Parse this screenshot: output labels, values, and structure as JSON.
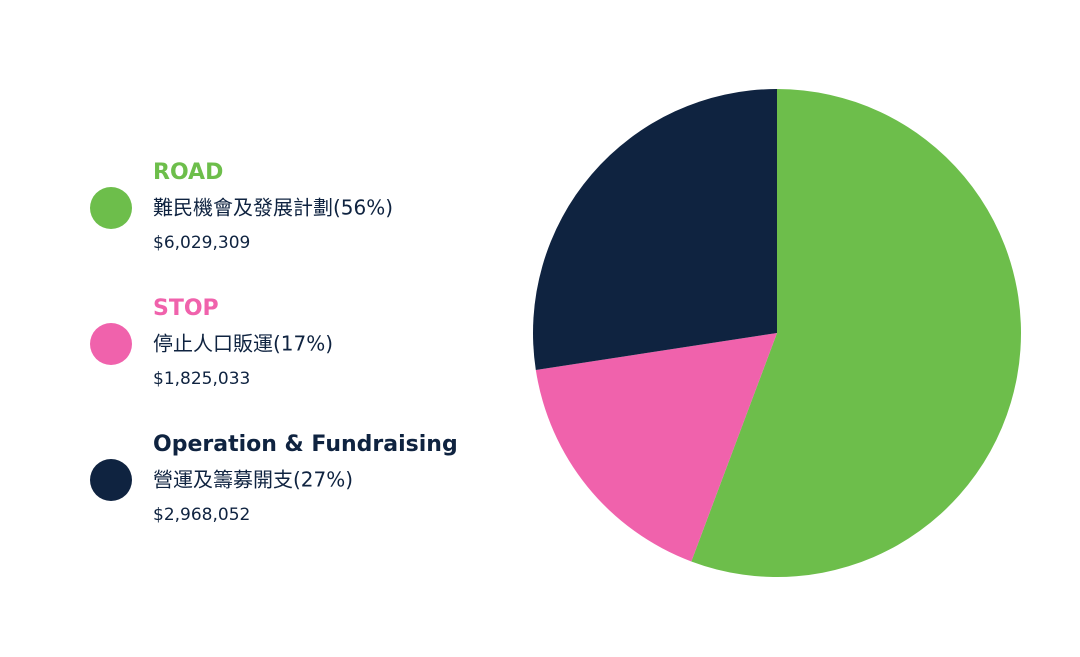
{
  "chart_data": {
    "type": "pie",
    "categories": [
      "ROAD",
      "STOP",
      "Operation & Fundraising"
    ],
    "descriptions": [
      "難民機會及發展計劃(56%)",
      "停止人口販運(17%)",
      "營運及籌募開支(27%)"
    ],
    "values": [
      6029309,
      1825033,
      2968052
    ],
    "value_labels": [
      "$6,029,309",
      "$1,825,033",
      "$2,968,052"
    ],
    "colors": [
      "#6dbe4b",
      "#f062ac",
      "#0f2340"
    ]
  }
}
